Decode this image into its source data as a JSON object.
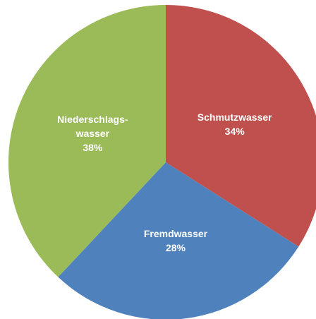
{
  "chart_data": {
    "type": "pie",
    "categories": [
      "Schmutzwasser",
      "Fremdwasser",
      "Niederschlags-\nwasser"
    ],
    "values": [
      34,
      28,
      38
    ],
    "value_labels": [
      "34%",
      "28%",
      "38%"
    ],
    "colors": [
      "#c0504d",
      "#4f81bd",
      "#9bbb59"
    ]
  }
}
